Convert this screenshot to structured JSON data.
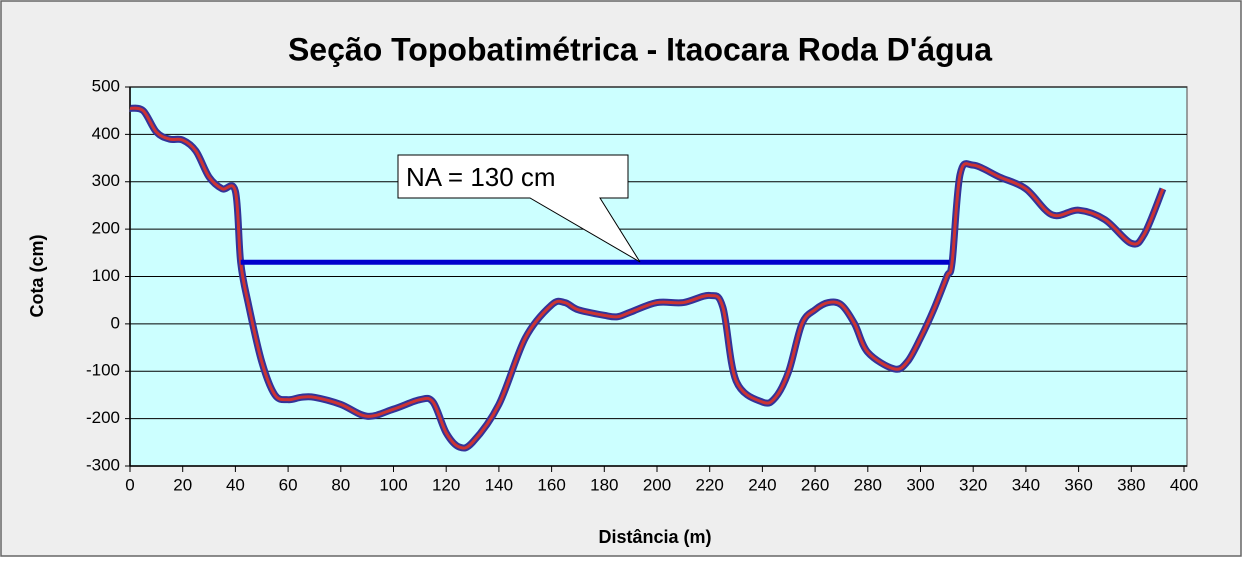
{
  "chart_data": {
    "type": "line",
    "title": "Seção Topobatimétrica - Itaocara Roda D'água",
    "x_label": "Distância (m)",
    "y_label": "Cota (cm)",
    "annotation": "NA = 130 cm",
    "xlim": [
      0,
      400
    ],
    "xticks": [
      0,
      20,
      40,
      60,
      80,
      100,
      120,
      140,
      160,
      180,
      200,
      220,
      240,
      260,
      280,
      300,
      320,
      340,
      360,
      380,
      400
    ],
    "ylim": [
      -300,
      500
    ],
    "yticks": [
      -300,
      -200,
      -100,
      0,
      100,
      200,
      300,
      400,
      500
    ],
    "grid": true,
    "background": "#ccffff",
    "series": [
      {
        "color": "#cc3333",
        "edge_color": "#333399",
        "x": [
          0,
          5,
          10,
          15,
          20,
          25,
          30,
          35,
          40,
          42,
          45,
          50,
          55,
          60,
          65,
          70,
          80,
          90,
          100,
          110,
          115,
          120,
          125,
          130,
          140,
          150,
          160,
          165,
          170,
          180,
          185,
          190,
          200,
          210,
          220,
          225,
          230,
          240,
          245,
          250,
          255,
          260,
          265,
          270,
          275,
          280,
          290,
          295,
          300,
          305,
          310,
          312,
          315,
          320,
          330,
          340,
          350,
          360,
          370,
          380,
          385,
          392
        ],
        "values": [
          455,
          450,
          405,
          390,
          388,
          365,
          310,
          285,
          280,
          130,
          40,
          -80,
          -150,
          -160,
          -155,
          -155,
          -170,
          -195,
          -180,
          -160,
          -165,
          -230,
          -260,
          -250,
          -170,
          -30,
          40,
          45,
          30,
          18,
          15,
          25,
          45,
          45,
          60,
          35,
          -120,
          -165,
          -155,
          -100,
          0,
          30,
          45,
          40,
          0,
          -60,
          -95,
          -80,
          -30,
          30,
          100,
          130,
          315,
          335,
          310,
          285,
          230,
          240,
          220,
          170,
          190,
          285
        ]
      },
      {
        "color": "#0000cc",
        "x": [
          42,
          311
        ],
        "values": [
          130,
          130
        ]
      }
    ]
  }
}
